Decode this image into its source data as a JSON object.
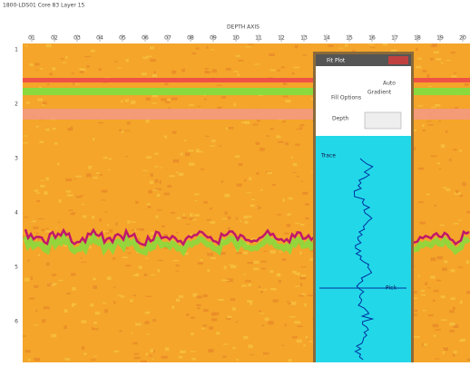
{
  "window": {
    "title": "1800-LDS01 Core 83 Layer 15",
    "axis_title": "DEPTH AXIS"
  },
  "top_axis": {
    "ticks": [
      "01",
      "02",
      "03",
      "04",
      "05",
      "06",
      "07",
      "08",
      "09",
      "10",
      "11",
      "12",
      "13",
      "14",
      "15",
      "16",
      "17",
      "18",
      "19",
      "20"
    ]
  },
  "left_axis": {
    "ticks": [
      "1",
      "2",
      "3",
      "4",
      "5",
      "6"
    ]
  },
  "popup": {
    "title": "Fit Plot",
    "options": [
      "Auto",
      "Gradient",
      "Fill Options",
      "Depth"
    ],
    "trace_label": "Trace",
    "marker_label": "Pick"
  }
}
